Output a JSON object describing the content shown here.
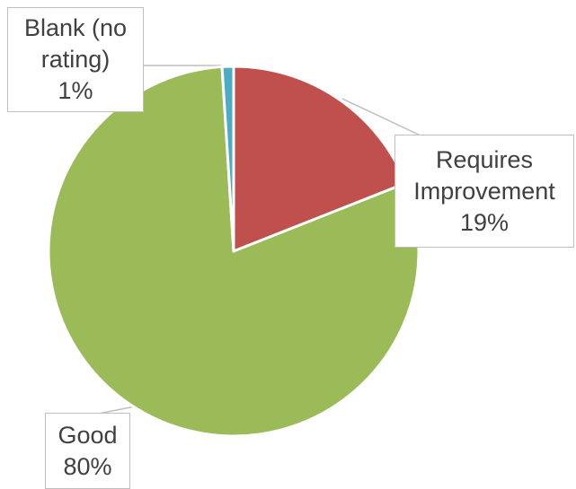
{
  "chart_data": {
    "type": "pie",
    "title": "",
    "slices": [
      {
        "name": "Requires Improvement",
        "value": 19,
        "label_lines": [
          "Requires",
          "Improvement"
        ],
        "pct_label": "19%",
        "color": "#c0504d"
      },
      {
        "name": "Good",
        "value": 80,
        "label_lines": [
          "Good"
        ],
        "pct_label": "80%",
        "color": "#9bbb59"
      },
      {
        "name": "Blank (no rating)",
        "value": 1,
        "label_lines": [
          "Blank (no",
          "rating)"
        ],
        "pct_label": "1%",
        "color": "#4bacc6"
      }
    ],
    "legend": "none",
    "data_labels": "callouts"
  }
}
